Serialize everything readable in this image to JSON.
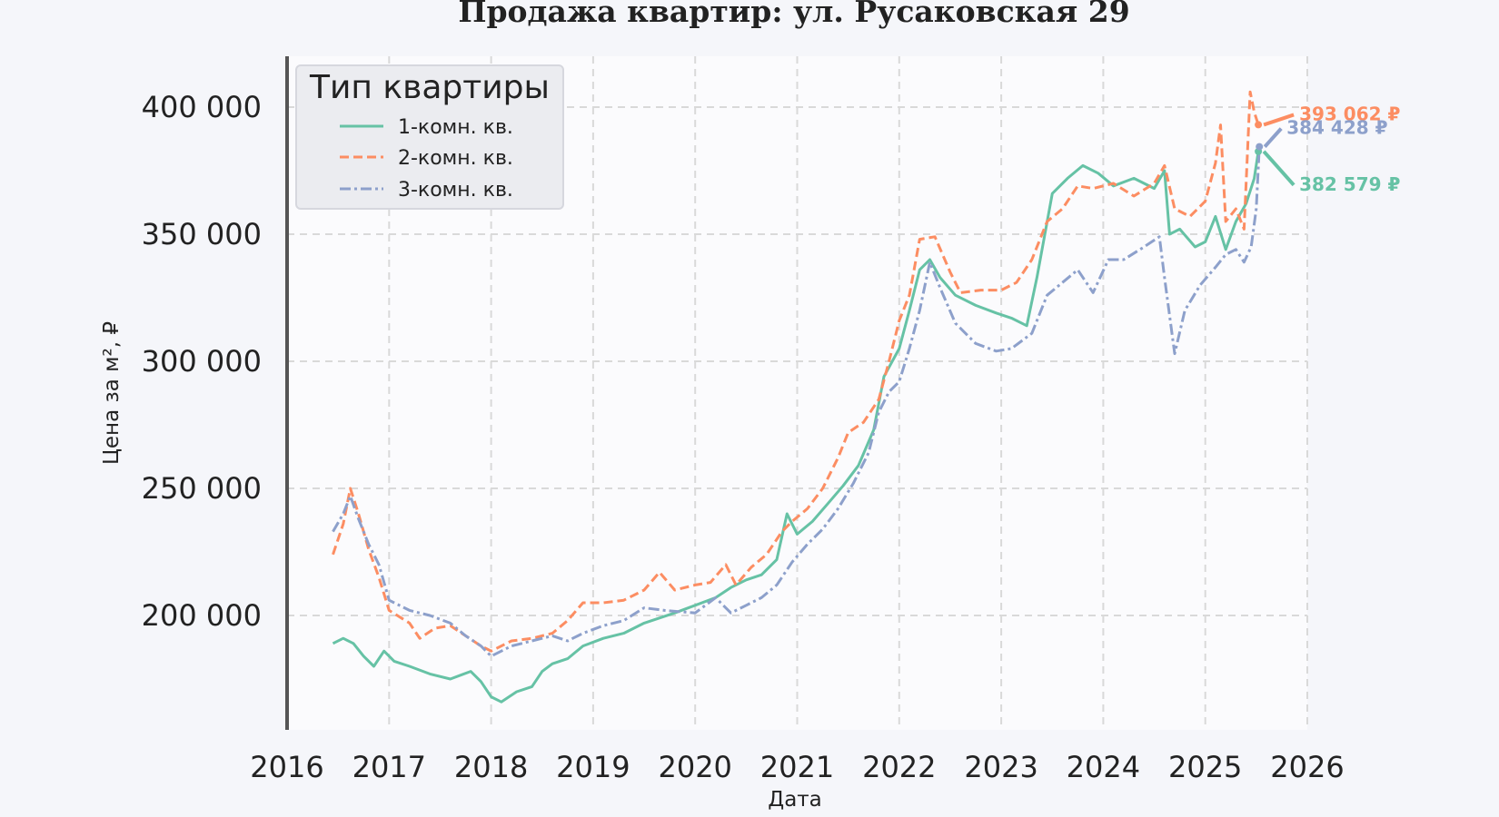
{
  "chart_data": {
    "type": "line",
    "title": "Продажа квартир: ул. Русаковская 29",
    "xlabel": "Дата",
    "ylabel": "Цена за м², ₽",
    "xlim": [
      2016,
      2026
    ],
    "ylim": [
      155000,
      420000
    ],
    "x_ticks": [
      "2016",
      "2017",
      "2018",
      "2019",
      "2020",
      "2021",
      "2022",
      "2023",
      "2024",
      "2025",
      "2026"
    ],
    "y_ticks": [
      "200 000",
      "250 000",
      "300 000",
      "350 000",
      "400 000"
    ],
    "y_tick_values": [
      200000,
      250000,
      300000,
      350000,
      400000
    ],
    "grid": true,
    "legend": {
      "title": "Тип квартиры",
      "placement": "top-left"
    },
    "series": [
      {
        "name": "1-комн. кв.",
        "color": "#66c2a5",
        "style": "solid",
        "end_label": "382 579 ₽",
        "end_value": 382579,
        "points": [
          [
            2016.45,
            189000
          ],
          [
            2016.55,
            191000
          ],
          [
            2016.65,
            189000
          ],
          [
            2016.75,
            184000
          ],
          [
            2016.85,
            180000
          ],
          [
            2016.95,
            186000
          ],
          [
            2017.05,
            182000
          ],
          [
            2017.2,
            180000
          ],
          [
            2017.4,
            177000
          ],
          [
            2017.6,
            175000
          ],
          [
            2017.8,
            178000
          ],
          [
            2017.9,
            174000
          ],
          [
            2018.0,
            168000
          ],
          [
            2018.1,
            166000
          ],
          [
            2018.25,
            170000
          ],
          [
            2018.4,
            172000
          ],
          [
            2018.5,
            178000
          ],
          [
            2018.6,
            181000
          ],
          [
            2018.75,
            183000
          ],
          [
            2018.9,
            188000
          ],
          [
            2019.1,
            191000
          ],
          [
            2019.3,
            193000
          ],
          [
            2019.5,
            197000
          ],
          [
            2019.8,
            201000
          ],
          [
            2020.0,
            204000
          ],
          [
            2020.2,
            207000
          ],
          [
            2020.35,
            211000
          ],
          [
            2020.5,
            214000
          ],
          [
            2020.65,
            216000
          ],
          [
            2020.8,
            222000
          ],
          [
            2020.9,
            240000
          ],
          [
            2021.0,
            232000
          ],
          [
            2021.15,
            237000
          ],
          [
            2021.3,
            244000
          ],
          [
            2021.45,
            251000
          ],
          [
            2021.6,
            259000
          ],
          [
            2021.75,
            273000
          ],
          [
            2021.85,
            294000
          ],
          [
            2022.0,
            305000
          ],
          [
            2022.1,
            320000
          ],
          [
            2022.2,
            336000
          ],
          [
            2022.3,
            340000
          ],
          [
            2022.4,
            333000
          ],
          [
            2022.55,
            326000
          ],
          [
            2022.75,
            322000
          ],
          [
            2022.95,
            319000
          ],
          [
            2023.1,
            317000
          ],
          [
            2023.25,
            314000
          ],
          [
            2023.35,
            333000
          ],
          [
            2023.5,
            366000
          ],
          [
            2023.65,
            372000
          ],
          [
            2023.8,
            377000
          ],
          [
            2023.95,
            374000
          ],
          [
            2024.1,
            369000
          ],
          [
            2024.3,
            372000
          ],
          [
            2024.5,
            368000
          ],
          [
            2024.6,
            375000
          ],
          [
            2024.65,
            350000
          ],
          [
            2024.75,
            352000
          ],
          [
            2024.9,
            345000
          ],
          [
            2025.0,
            347000
          ],
          [
            2025.1,
            357000
          ],
          [
            2025.2,
            344000
          ],
          [
            2025.3,
            355000
          ],
          [
            2025.4,
            362000
          ],
          [
            2025.48,
            372000
          ],
          [
            2025.52,
            382579
          ]
        ]
      },
      {
        "name": "2-комн. кв.",
        "color": "#fc8d62",
        "style": "dashed",
        "end_label": "393 062 ₽",
        "end_value": 393062,
        "points": [
          [
            2016.45,
            224000
          ],
          [
            2016.55,
            236000
          ],
          [
            2016.62,
            250000
          ],
          [
            2016.7,
            240000
          ],
          [
            2016.8,
            226000
          ],
          [
            2016.9,
            215000
          ],
          [
            2017.0,
            202000
          ],
          [
            2017.2,
            197000
          ],
          [
            2017.3,
            191000
          ],
          [
            2017.45,
            195000
          ],
          [
            2017.6,
            196000
          ],
          [
            2017.75,
            192000
          ],
          [
            2017.9,
            188000
          ],
          [
            2018.0,
            186000
          ],
          [
            2018.2,
            190000
          ],
          [
            2018.4,
            191000
          ],
          [
            2018.6,
            193000
          ],
          [
            2018.75,
            198000
          ],
          [
            2018.9,
            205000
          ],
          [
            2019.1,
            205000
          ],
          [
            2019.3,
            206000
          ],
          [
            2019.5,
            210000
          ],
          [
            2019.65,
            217000
          ],
          [
            2019.8,
            210000
          ],
          [
            2020.0,
            212000
          ],
          [
            2020.15,
            213000
          ],
          [
            2020.3,
            220000
          ],
          [
            2020.4,
            212000
          ],
          [
            2020.55,
            219000
          ],
          [
            2020.7,
            224000
          ],
          [
            2020.85,
            233000
          ],
          [
            2020.95,
            237000
          ],
          [
            2021.1,
            242000
          ],
          [
            2021.25,
            250000
          ],
          [
            2021.4,
            262000
          ],
          [
            2021.5,
            272000
          ],
          [
            2021.65,
            276000
          ],
          [
            2021.8,
            285000
          ],
          [
            2021.9,
            300000
          ],
          [
            2022.0,
            316000
          ],
          [
            2022.1,
            326000
          ],
          [
            2022.2,
            348000
          ],
          [
            2022.35,
            349000
          ],
          [
            2022.5,
            335000
          ],
          [
            2022.6,
            327000
          ],
          [
            2022.8,
            328000
          ],
          [
            2023.0,
            328000
          ],
          [
            2023.15,
            331000
          ],
          [
            2023.3,
            340000
          ],
          [
            2023.45,
            355000
          ],
          [
            2023.6,
            360000
          ],
          [
            2023.75,
            369000
          ],
          [
            2023.9,
            368000
          ],
          [
            2024.1,
            370000
          ],
          [
            2024.3,
            365000
          ],
          [
            2024.5,
            370000
          ],
          [
            2024.6,
            377000
          ],
          [
            2024.7,
            360000
          ],
          [
            2024.85,
            357000
          ],
          [
            2025.0,
            363000
          ],
          [
            2025.1,
            378000
          ],
          [
            2025.15,
            393000
          ],
          [
            2025.2,
            355000
          ],
          [
            2025.3,
            360000
          ],
          [
            2025.38,
            352000
          ],
          [
            2025.44,
            406000
          ],
          [
            2025.48,
            398000
          ],
          [
            2025.52,
            393062
          ]
        ]
      },
      {
        "name": "3-комн. кв.",
        "color": "#8da0cb",
        "style": "dashdot",
        "end_label": "384 428 ₽",
        "end_value": 384428,
        "points": [
          [
            2016.45,
            233000
          ],
          [
            2016.55,
            240000
          ],
          [
            2016.62,
            247000
          ],
          [
            2016.7,
            238000
          ],
          [
            2016.8,
            228000
          ],
          [
            2016.9,
            220000
          ],
          [
            2017.0,
            206000
          ],
          [
            2017.2,
            202000
          ],
          [
            2017.4,
            200000
          ],
          [
            2017.6,
            197000
          ],
          [
            2017.75,
            192000
          ],
          [
            2017.9,
            188000
          ],
          [
            2018.0,
            184000
          ],
          [
            2018.2,
            188000
          ],
          [
            2018.4,
            190000
          ],
          [
            2018.6,
            192000
          ],
          [
            2018.75,
            190000
          ],
          [
            2018.9,
            193000
          ],
          [
            2019.1,
            196000
          ],
          [
            2019.3,
            198000
          ],
          [
            2019.5,
            203000
          ],
          [
            2019.7,
            202000
          ],
          [
            2020.0,
            201000
          ],
          [
            2020.2,
            207000
          ],
          [
            2020.35,
            201000
          ],
          [
            2020.5,
            204000
          ],
          [
            2020.65,
            207000
          ],
          [
            2020.8,
            212000
          ],
          [
            2020.95,
            221000
          ],
          [
            2021.1,
            228000
          ],
          [
            2021.25,
            234000
          ],
          [
            2021.4,
            242000
          ],
          [
            2021.55,
            252000
          ],
          [
            2021.7,
            264000
          ],
          [
            2021.8,
            280000
          ],
          [
            2021.9,
            288000
          ],
          [
            2022.0,
            292000
          ],
          [
            2022.1,
            305000
          ],
          [
            2022.2,
            320000
          ],
          [
            2022.3,
            339000
          ],
          [
            2022.4,
            329000
          ],
          [
            2022.55,
            315000
          ],
          [
            2022.75,
            307000
          ],
          [
            2022.95,
            304000
          ],
          [
            2023.1,
            305000
          ],
          [
            2023.3,
            311000
          ],
          [
            2023.45,
            326000
          ],
          [
            2023.6,
            331000
          ],
          [
            2023.75,
            336000
          ],
          [
            2023.9,
            327000
          ],
          [
            2024.05,
            340000
          ],
          [
            2024.2,
            340000
          ],
          [
            2024.4,
            345000
          ],
          [
            2024.55,
            349000
          ],
          [
            2024.6,
            333000
          ],
          [
            2024.7,
            303000
          ],
          [
            2024.8,
            320000
          ],
          [
            2024.95,
            330000
          ],
          [
            2025.1,
            337000
          ],
          [
            2025.2,
            342000
          ],
          [
            2025.3,
            344000
          ],
          [
            2025.38,
            339000
          ],
          [
            2025.45,
            345000
          ],
          [
            2025.5,
            360000
          ],
          [
            2025.53,
            384428
          ]
        ]
      }
    ]
  }
}
